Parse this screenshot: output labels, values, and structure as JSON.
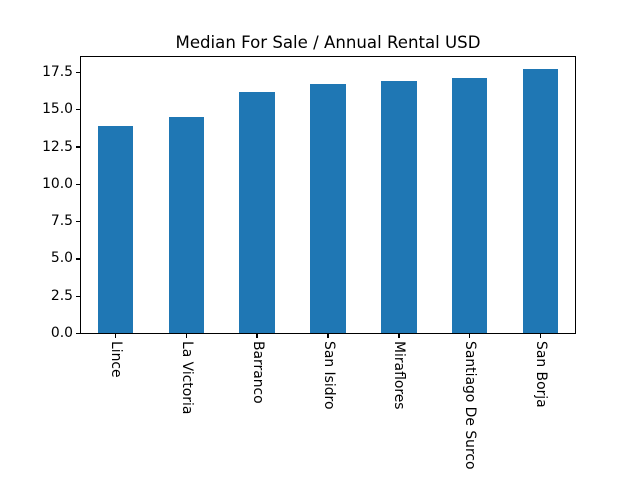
{
  "chart_data": {
    "type": "bar",
    "title": "Median For Sale / Annual Rental USD",
    "categories": [
      "Lince",
      "La Victoria",
      "Barranco",
      "San Isidro",
      "Miraflores",
      "Santiago De Surco",
      "San Borja"
    ],
    "values": [
      13.9,
      14.5,
      16.2,
      16.7,
      16.9,
      17.1,
      17.7
    ],
    "xlabel": "",
    "ylabel": "",
    "ylim": [
      0,
      18.6
    ],
    "yticks": [
      0.0,
      2.5,
      5.0,
      7.5,
      10.0,
      12.5,
      15.0,
      17.5
    ],
    "ytick_labels": [
      "0.0",
      "2.5",
      "5.0",
      "7.5",
      "10.0",
      "12.5",
      "15.0",
      "17.5"
    ],
    "xtick_rotation": 90,
    "bar_color": "#1f77b4",
    "bar_relative_width": 0.5,
    "grid": false,
    "legend": false,
    "background_color": "#ffffff",
    "spine_color": "#000000"
  }
}
